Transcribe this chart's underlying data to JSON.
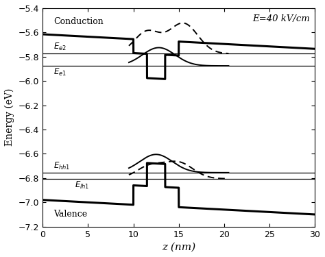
{
  "title": "",
  "xlabel": "z (nm)",
  "ylabel": "Energy (eV)",
  "xlim": [
    0,
    30
  ],
  "ylim": [
    -7.2,
    -5.4
  ],
  "yticks": [
    -7.2,
    -7.0,
    -6.8,
    -6.6,
    -6.4,
    -6.2,
    -6.0,
    -5.8,
    -5.6,
    -5.4
  ],
  "xticks": [
    0,
    5,
    10,
    15,
    20,
    25,
    30
  ],
  "annotation_E": "E=40 kV/cm",
  "label_conduction": "Conduction",
  "label_valence": "Valence",
  "Ee2": -5.775,
  "Ee1": -5.875,
  "Ehh1": -6.755,
  "Elh1": -6.805,
  "bg_color": "#ffffff"
}
